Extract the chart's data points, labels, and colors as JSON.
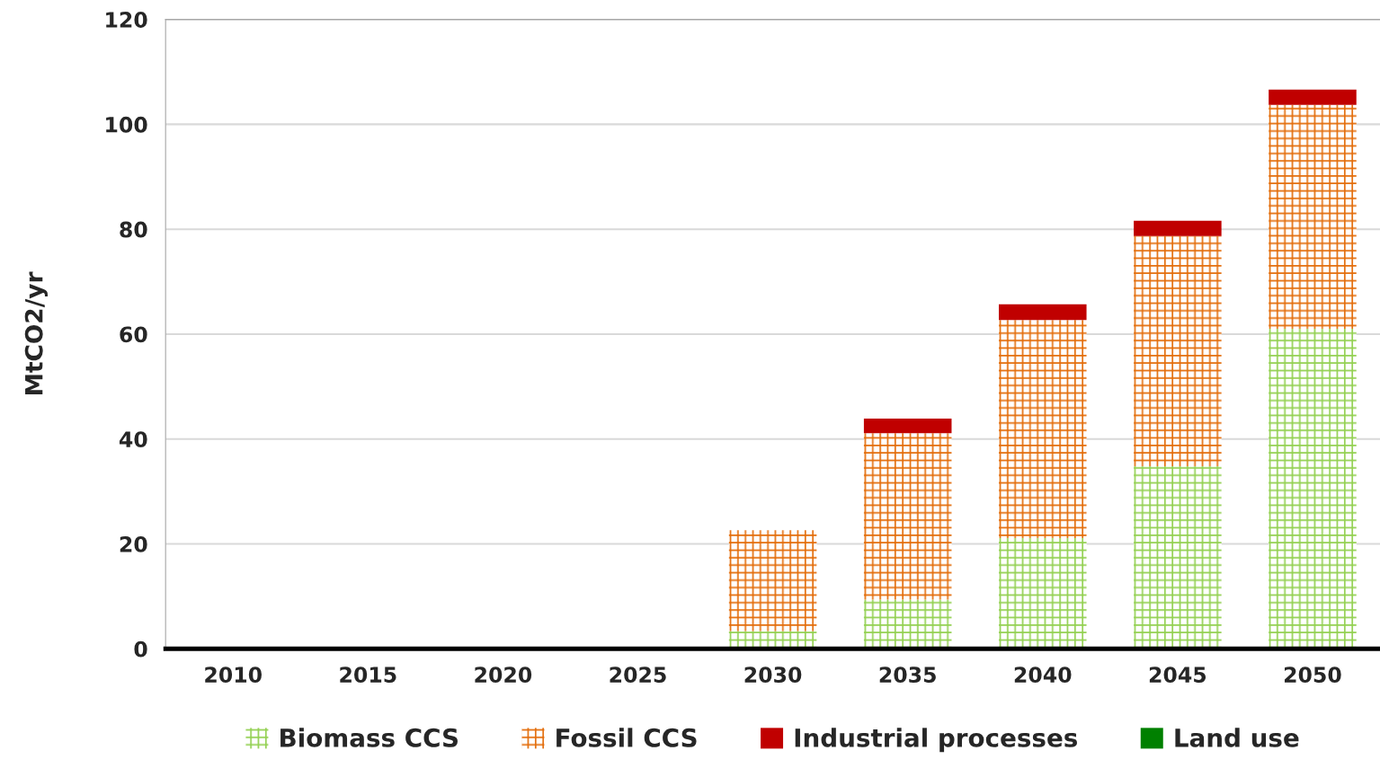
{
  "chart_data": {
    "type": "bar",
    "stacked": true,
    "ylabel": "MtCO2/yr",
    "categories": [
      "2010",
      "2015",
      "2020",
      "2025",
      "2030",
      "2035",
      "2040",
      "2045",
      "2050"
    ],
    "series": [
      {
        "name": "Biomass CCS",
        "color": "#92d050",
        "values": [
          0,
          0,
          0,
          0,
          3.4,
          9.4,
          21.1,
          34.8,
          61.0
        ]
      },
      {
        "name": "Fossil CCS",
        "color": "#e36c09",
        "values": [
          0,
          0,
          0,
          0,
          19.2,
          31.7,
          41.6,
          43.9,
          42.7
        ]
      },
      {
        "name": "Industrial processes",
        "color": "#c00000",
        "values": [
          0,
          0,
          0,
          0,
          0,
          2.8,
          3.0,
          2.9,
          2.9
        ]
      },
      {
        "name": "Land use",
        "color": "#008000",
        "values": [
          0,
          0,
          0,
          0,
          0,
          0,
          0,
          0,
          0
        ]
      }
    ],
    "ylim": [
      0,
      120
    ],
    "yticks": [
      0,
      20,
      40,
      60,
      80,
      100,
      120
    ],
    "grid": "y",
    "legend": "bottom"
  }
}
